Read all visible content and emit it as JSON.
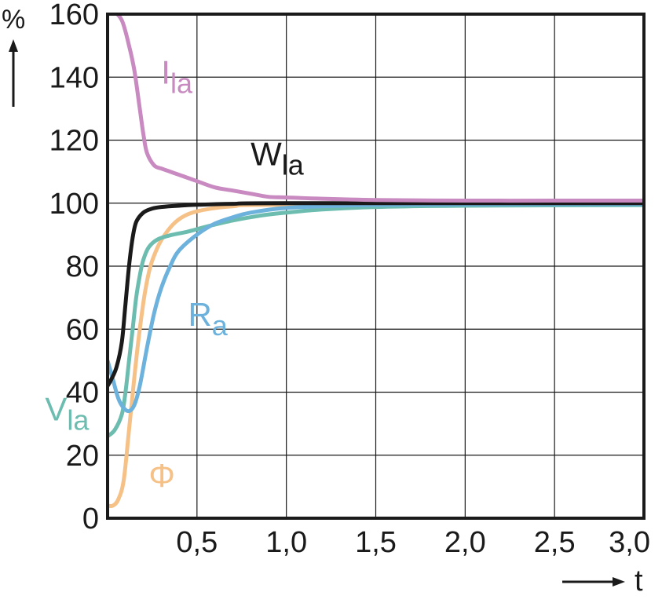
{
  "chart_data": {
    "type": "line",
    "xlabel": "t",
    "ylabel": "%",
    "xlim": [
      0,
      3.0
    ],
    "ylim": [
      0,
      160
    ],
    "grid": true,
    "x_ticks": [
      "0,5",
      "1,0",
      "1,5",
      "2,0",
      "2,5",
      "3,0"
    ],
    "x_tick_values": [
      0.5,
      1.0,
      1.5,
      2.0,
      2.5,
      3.0
    ],
    "y_ticks": [
      "0",
      "20",
      "40",
      "60",
      "80",
      "100",
      "120",
      "140",
      "160"
    ],
    "y_tick_values": [
      0,
      20,
      40,
      60,
      80,
      100,
      120,
      140,
      160
    ],
    "series": [
      {
        "name": "I",
        "name_sub": "la",
        "color": "#c88ac0",
        "label_pos": [
          0.3,
          138
        ],
        "points": [
          [
            0,
            161
          ],
          [
            0.03,
            161
          ],
          [
            0.08,
            158
          ],
          [
            0.12,
            150
          ],
          [
            0.15,
            142
          ],
          [
            0.18,
            130
          ],
          [
            0.2,
            122
          ],
          [
            0.22,
            116
          ],
          [
            0.26,
            112
          ],
          [
            0.3,
            111
          ],
          [
            0.35,
            110
          ],
          [
            0.4,
            109
          ],
          [
            0.45,
            108
          ],
          [
            0.5,
            107
          ],
          [
            0.6,
            105
          ],
          [
            0.7,
            104
          ],
          [
            0.8,
            103
          ],
          [
            0.9,
            102
          ],
          [
            1.0,
            101.8
          ],
          [
            1.2,
            101.4
          ],
          [
            1.5,
            101
          ],
          [
            2.0,
            100.8
          ],
          [
            2.5,
            100.8
          ],
          [
            3.0,
            100.8
          ]
        ]
      },
      {
        "name": "W",
        "name_sub": "la",
        "color": "#1a1a1a",
        "label_pos": [
          0.8,
          112
        ],
        "points": [
          [
            0,
            42
          ],
          [
            0.02,
            44
          ],
          [
            0.05,
            48
          ],
          [
            0.08,
            56
          ],
          [
            0.1,
            68
          ],
          [
            0.12,
            80
          ],
          [
            0.14,
            89
          ],
          [
            0.16,
            94
          ],
          [
            0.2,
            97
          ],
          [
            0.25,
            98.3
          ],
          [
            0.3,
            98.8
          ],
          [
            0.4,
            99.2
          ],
          [
            0.5,
            99.5
          ],
          [
            0.7,
            99.8
          ],
          [
            1.0,
            100
          ],
          [
            3.0,
            100
          ]
        ]
      },
      {
        "name": "R",
        "name_sub": "a",
        "color": "#6cb2dc",
        "label_pos": [
          0.45,
          61
        ],
        "points": [
          [
            0,
            50
          ],
          [
            0.03,
            44
          ],
          [
            0.06,
            38
          ],
          [
            0.09,
            35
          ],
          [
            0.12,
            34
          ],
          [
            0.15,
            36
          ],
          [
            0.18,
            42
          ],
          [
            0.22,
            54
          ],
          [
            0.26,
            65
          ],
          [
            0.3,
            73
          ],
          [
            0.35,
            80
          ],
          [
            0.4,
            85
          ],
          [
            0.5,
            90
          ],
          [
            0.6,
            93.5
          ],
          [
            0.7,
            95.5
          ],
          [
            0.8,
            97
          ],
          [
            1.0,
            98.5
          ],
          [
            1.3,
            99.2
          ],
          [
            1.6,
            99.5
          ],
          [
            2.0,
            99.6
          ],
          [
            3.0,
            99.7
          ]
        ]
      },
      {
        "name": "V",
        "name_sub": "la",
        "color": "#6cbdb0",
        "label_pos": [
          -0.35,
          31
        ],
        "points": [
          [
            0,
            26
          ],
          [
            0.04,
            28
          ],
          [
            0.08,
            33
          ],
          [
            0.1,
            40
          ],
          [
            0.12,
            50
          ],
          [
            0.14,
            60
          ],
          [
            0.16,
            70
          ],
          [
            0.18,
            77
          ],
          [
            0.2,
            82
          ],
          [
            0.23,
            86
          ],
          [
            0.28,
            88.5
          ],
          [
            0.35,
            89.8
          ],
          [
            0.45,
            91
          ],
          [
            0.55,
            92.5
          ],
          [
            0.7,
            94.5
          ],
          [
            0.85,
            96
          ],
          [
            1.0,
            97
          ],
          [
            1.2,
            98
          ],
          [
            1.5,
            98.8
          ],
          [
            2.0,
            99.2
          ],
          [
            3.0,
            99.4
          ]
        ]
      },
      {
        "name": "Φ",
        "name_sub": "",
        "color": "#f6c187",
        "label_pos": [
          0.23,
          10
        ],
        "points": [
          [
            0,
            4
          ],
          [
            0.03,
            4
          ],
          [
            0.06,
            6
          ],
          [
            0.09,
            12
          ],
          [
            0.12,
            28
          ],
          [
            0.15,
            45
          ],
          [
            0.18,
            60
          ],
          [
            0.21,
            72
          ],
          [
            0.24,
            80
          ],
          [
            0.28,
            86
          ],
          [
            0.32,
            90
          ],
          [
            0.38,
            94
          ],
          [
            0.45,
            96.5
          ],
          [
            0.55,
            98
          ],
          [
            0.7,
            99
          ],
          [
            1.0,
            99.5
          ],
          [
            3.0,
            99.7
          ]
        ]
      }
    ]
  }
}
